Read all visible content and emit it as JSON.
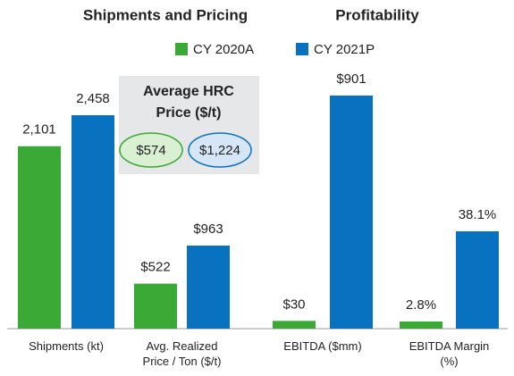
{
  "chart_data": {
    "type": "bar",
    "titles": [
      "Shipments and Pricing",
      "Profitability"
    ],
    "categories": [
      [
        "Shipments (kt)"
      ],
      [
        "Avg. Realized",
        "Price / Ton ($/t)"
      ],
      [
        "EBITDA ($mm)"
      ],
      [
        "EBITDA Margin",
        "(%)"
      ]
    ],
    "series": [
      {
        "name": "CY 2020A",
        "color": "#3aa935",
        "values": [
          2101,
          522,
          30,
          2.8
        ],
        "value_labels": [
          "2,101",
          "$522",
          "$30",
          "2.8%"
        ]
      },
      {
        "name": "CY 2021P",
        "color": "#0872c0",
        "values": [
          2458,
          963,
          901,
          38.1
        ],
        "value_labels": [
          "2,458",
          "$963",
          "$901",
          "38.1%"
        ]
      }
    ],
    "annotation": {
      "title": [
        "Average HRC",
        "Price ($/t)"
      ],
      "values": [
        574,
        1224
      ],
      "value_labels": [
        "$574",
        "$1,224"
      ]
    }
  }
}
